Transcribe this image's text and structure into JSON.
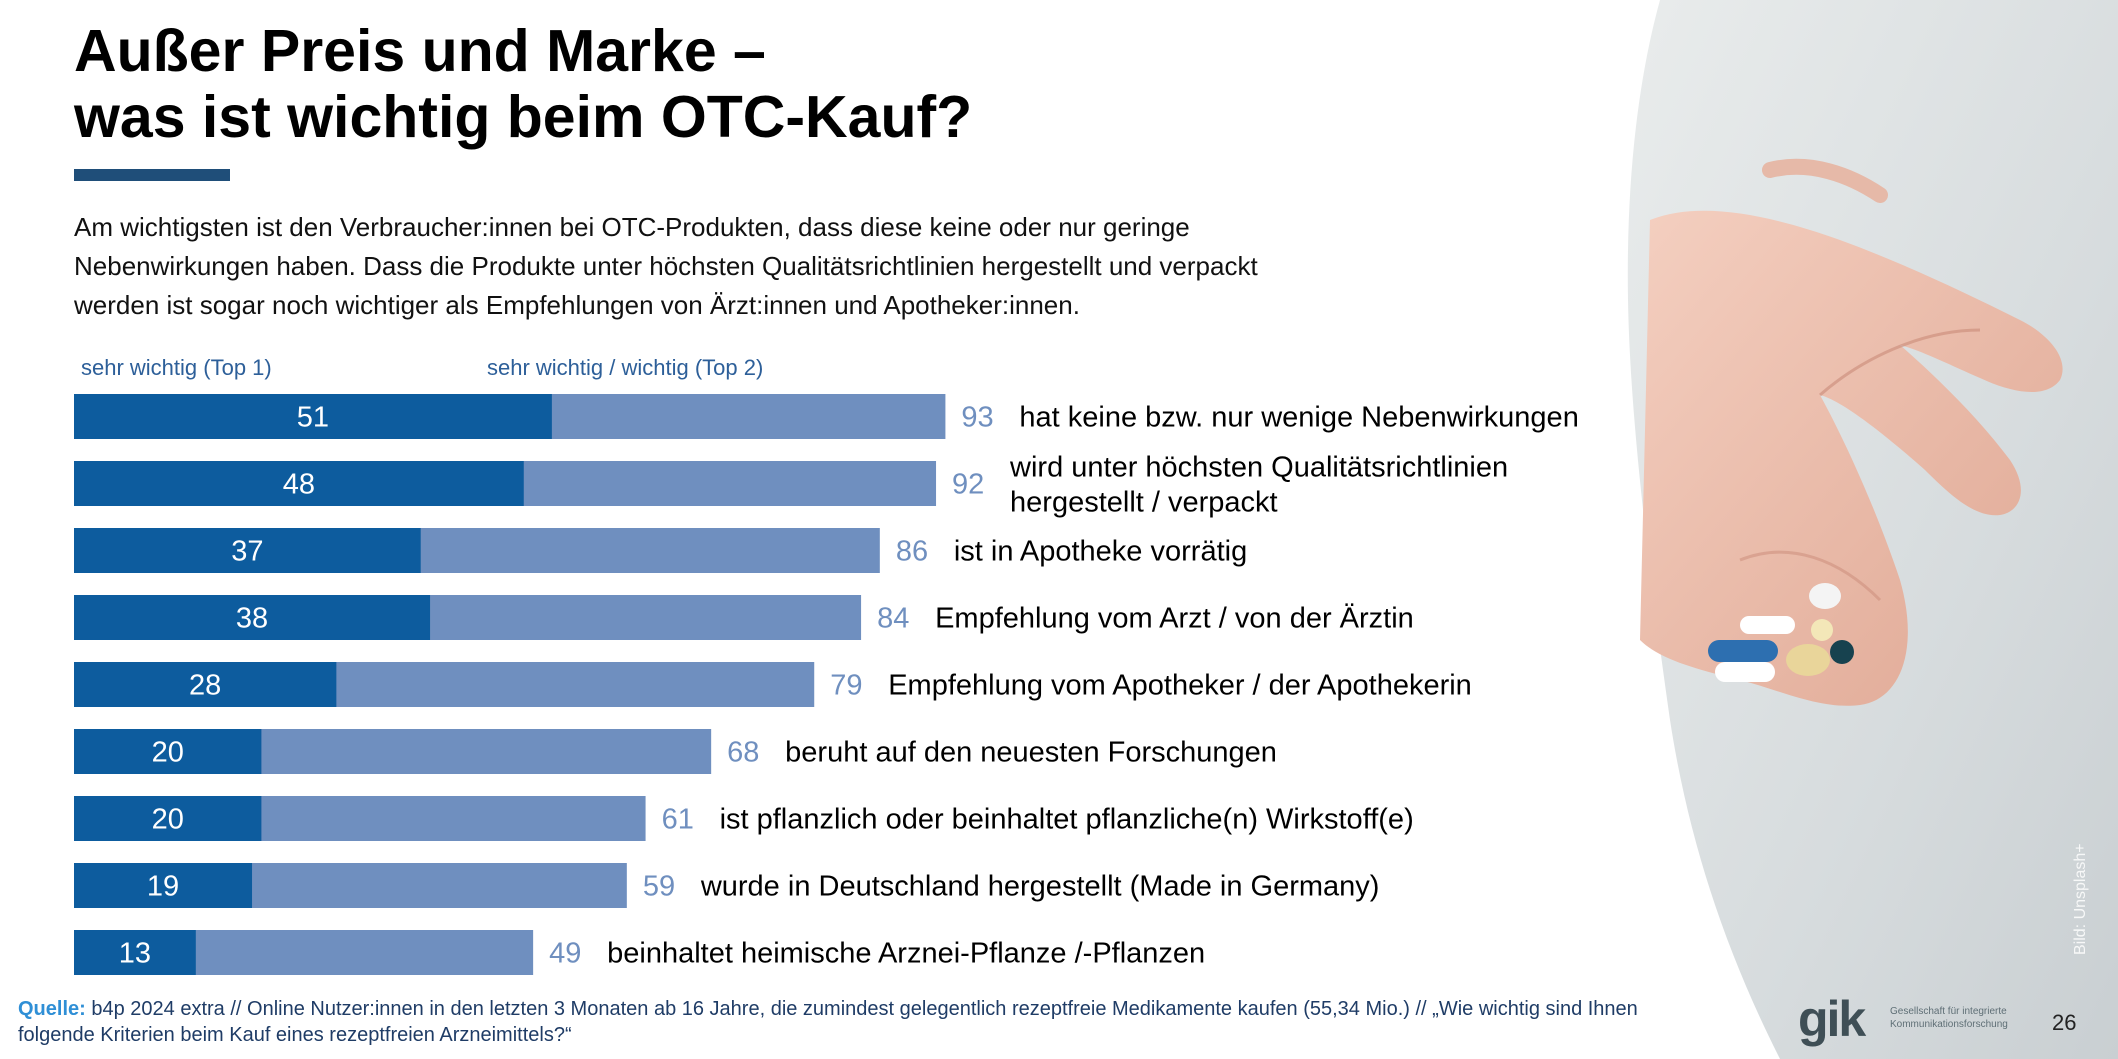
{
  "header": {
    "title_line1": "Außer Preis und Marke –",
    "title_line2": "was ist wichtig beim OTC-Kauf?",
    "description": "Am wichtigsten ist den Verbraucher:innen bei OTC-Produkten, dass diese keine oder nur geringe Nebenwirkungen haben. Dass die Produkte unter höchsten Qualitätsrichtlinien hergestellt und verpackt werden ist sogar noch wichtiger als Empfehlungen von Ärzt:innen und Apotheker:innen."
  },
  "legend": {
    "top1": "sehr wichtig (Top 1)",
    "top2": "sehr wichtig / wichtig (Top 2)"
  },
  "colors": {
    "top1": "#0d5c9e",
    "top2": "#6f8fbf",
    "top2_value": "#6f8fbf",
    "title_rule": "#1f4e79",
    "source_label": "#2f8fd6"
  },
  "chart_data": {
    "type": "bar",
    "orientation": "horizontal",
    "xlim": [
      0,
      100
    ],
    "categories": [
      [
        "hat keine bzw. nur wenige Nebenwirkungen"
      ],
      [
        "wird unter höchsten Qualitätsrichtlinien",
        "hergestellt / verpackt"
      ],
      [
        "ist in Apotheke vorrätig"
      ],
      [
        "Empfehlung vom Arzt / von der Ärztin"
      ],
      [
        "Empfehlung vom Apotheker / der Apothekerin"
      ],
      [
        "beruht auf den neuesten Forschungen"
      ],
      [
        "ist pflanzlich oder beinhaltet pflanzliche(n) Wirkstoff(e)"
      ],
      [
        "wurde in Deutschland hergestellt (Made in Germany)"
      ],
      [
        "beinhaltet heimische Arznei-Pflanze /-Pflanzen"
      ]
    ],
    "series": [
      {
        "name": "sehr wichtig (Top 1)",
        "values": [
          51,
          48,
          37,
          38,
          28,
          20,
          20,
          19,
          13
        ]
      },
      {
        "name": "sehr wichtig / wichtig (Top 2)",
        "values": [
          93,
          92,
          86,
          84,
          79,
          68,
          61,
          59,
          49
        ]
      }
    ]
  },
  "photo": {
    "credit": "Bild: Unsplash+",
    "icon": "hand-with-pills-photo"
  },
  "footer": {
    "source_label": "Quelle:",
    "source_text": " b4p 2024 extra // Online Nutzer:innen in den letzten 3 Monaten ab 16 Jahre, die zumindest gelegentlich rezeptfreie Medikamente kaufen (55,34 Mio.) // „Wie wichtig sind Ihnen folgende Kriterien beim Kauf eines rezeptfreien Arzneimittels?“",
    "logo": "gik",
    "logo_sub": "Gesellschaft für integrierte Kommunikationsforschung",
    "page_number": "26"
  }
}
